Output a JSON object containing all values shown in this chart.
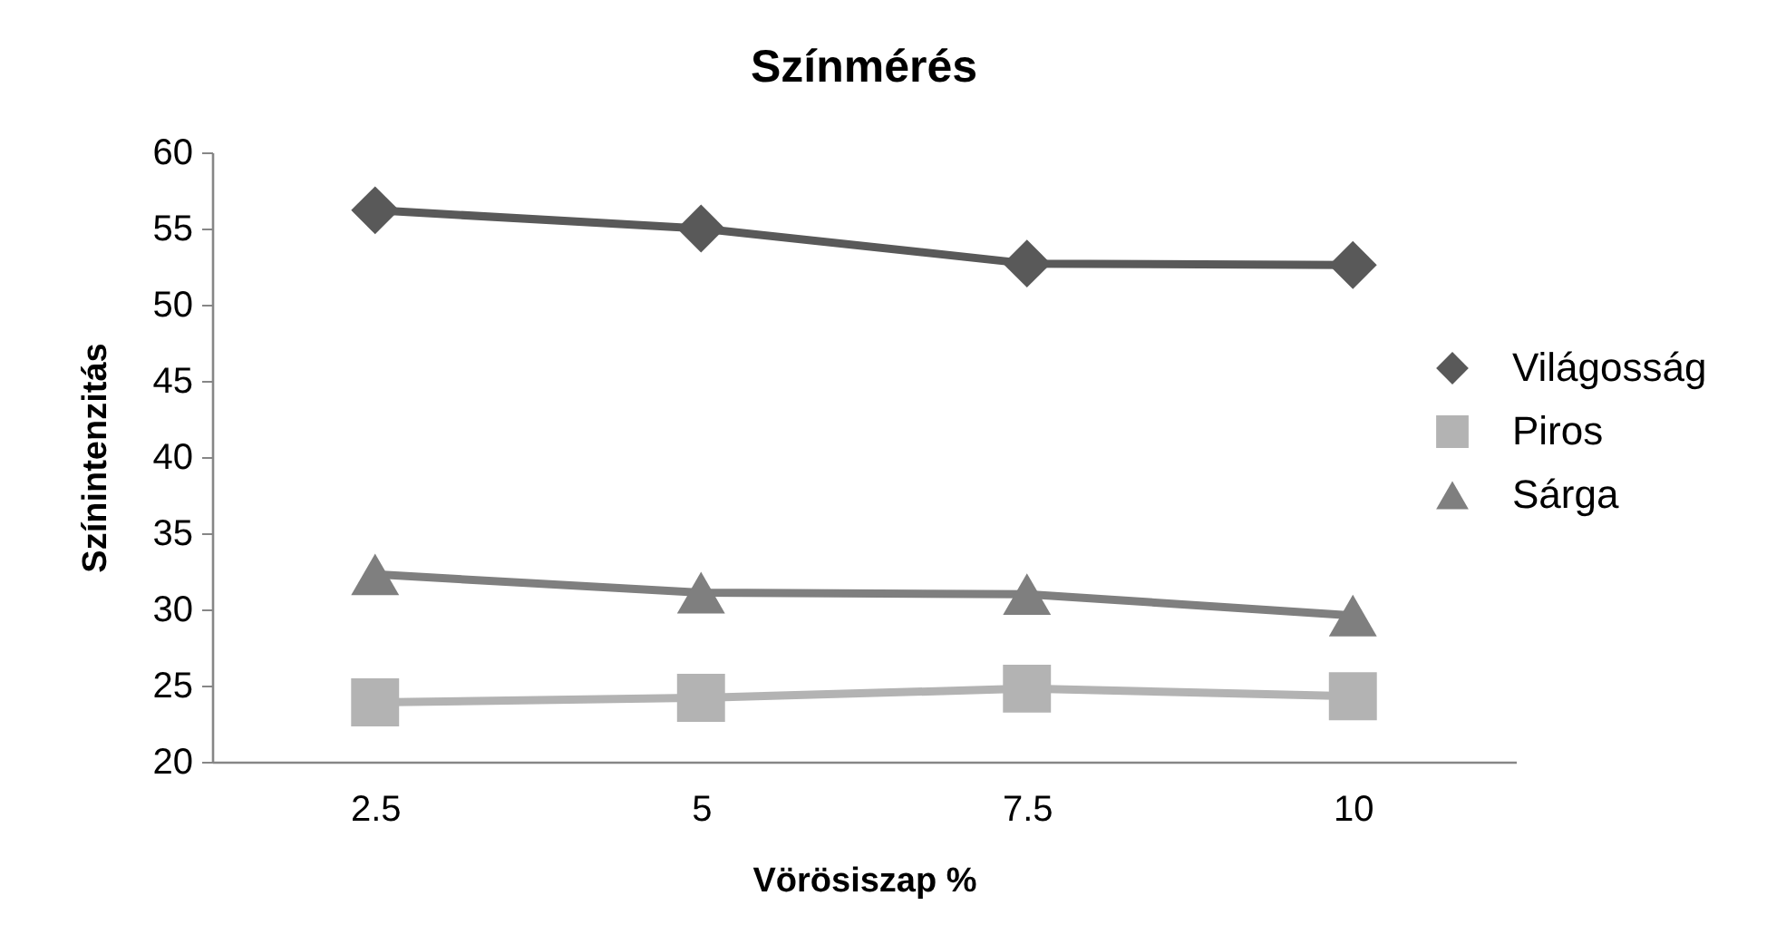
{
  "chart_data": {
    "type": "line",
    "title": "Színmérés",
    "xlabel": "Vörösiszap %",
    "ylabel": "Színintenzitás",
    "categories": [
      "2.5",
      "5",
      "7.5",
      "10"
    ],
    "series": [
      {
        "name": "Világosság",
        "color": "#595959",
        "marker": "diamond",
        "values": [
          56.2,
          55.0,
          52.7,
          52.6
        ]
      },
      {
        "name": "Piros",
        "color": "#b3b3b3",
        "marker": "square",
        "values": [
          23.9,
          24.2,
          24.8,
          24.3
        ]
      },
      {
        "name": "Sárga",
        "color": "#7f7f7f",
        "marker": "triangle",
        "values": [
          32.3,
          31.1,
          31.0,
          29.6
        ]
      }
    ],
    "ylim": [
      20,
      60
    ],
    "yticks": [
      20,
      25,
      30,
      35,
      40,
      45,
      50,
      55,
      60
    ],
    "grid": false,
    "legend": "right"
  }
}
